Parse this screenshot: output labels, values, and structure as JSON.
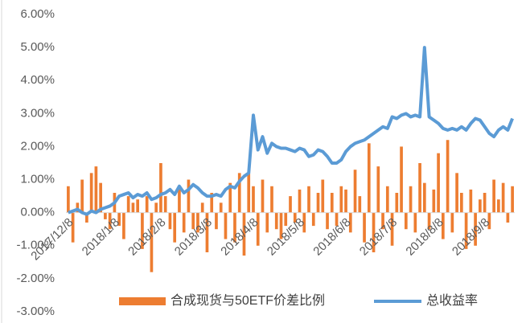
{
  "chart_data": {
    "type": "combo",
    "categories": [
      "2017/12/8",
      null,
      null,
      null,
      null,
      null,
      null,
      null,
      null,
      null,
      "2018/1/8",
      null,
      null,
      null,
      null,
      null,
      null,
      null,
      null,
      null,
      "2018/2/8",
      null,
      null,
      null,
      null,
      null,
      null,
      null,
      null,
      null,
      "2018/3/8",
      null,
      null,
      null,
      null,
      null,
      null,
      null,
      null,
      null,
      "2018/4/8",
      null,
      null,
      null,
      null,
      null,
      null,
      null,
      null,
      null,
      "2018/5/8",
      null,
      null,
      null,
      null,
      null,
      null,
      null,
      null,
      null,
      "2018/6/8",
      null,
      null,
      null,
      null,
      null,
      null,
      null,
      null,
      null,
      "2018/7/8",
      null,
      null,
      null,
      null,
      null,
      null,
      null,
      null,
      null,
      "2018/8/8",
      null,
      null,
      null,
      null,
      null,
      null,
      null,
      null,
      null,
      "2018/9/8",
      null,
      null,
      null,
      null,
      null,
      null
    ],
    "series": [
      {
        "name": "合成现货与50ETF价差比例",
        "type": "bar",
        "color": "#ed7d31",
        "values": [
          0.8,
          -0.9,
          0.3,
          1.0,
          -0.3,
          1.2,
          1.4,
          0.9,
          -0.2,
          -0.5,
          0.6,
          -0.4,
          -0.8,
          0.5,
          0.3,
          0.4,
          -1.1,
          0.5,
          -1.8,
          0.3,
          1.5,
          0.5,
          -0.5,
          -0.9,
          0.8,
          -0.6,
          1.0,
          -0.5,
          -0.6,
          0.3,
          -1.2,
          0.6,
          -0.5,
          0.3,
          -0.8,
          0.9,
          -0.9,
          1.2,
          -1.3,
          1.2,
          0.8,
          -1.0,
          1.0,
          -0.6,
          0.8,
          -0.5,
          -0.8,
          -0.4,
          0.5,
          -0.3,
          0.7,
          -0.6,
          0.8,
          -0.4,
          0.6,
          1.0,
          -0.5,
          0.6,
          -0.4,
          0.8,
          0.7,
          -0.6,
          1.3,
          0.5,
          -0.9,
          2.1,
          -1.2,
          1.4,
          -0.5,
          0.8,
          -1.0,
          0.6,
          2.0,
          -0.5,
          0.8,
          -0.6,
          1.5,
          0.9,
          -0.5,
          0.7,
          1.8,
          -0.8,
          2.2,
          -0.6,
          1.2,
          0.6,
          -1.1,
          0.7,
          -1.0,
          0.4,
          0.6,
          -0.5,
          1.0,
          0.4,
          0.9,
          -0.3,
          0.8
        ]
      },
      {
        "name": "总收益率",
        "type": "line",
        "color": "#5b9bd5",
        "values": [
          0,
          0.05,
          0.1,
          0,
          -0.05,
          0.05,
          0,
          0.1,
          0.15,
          0.2,
          0.3,
          0.5,
          0.55,
          0.6,
          0.45,
          0.55,
          0.5,
          0.6,
          0.4,
          0.45,
          0.55,
          0.6,
          0.7,
          0.55,
          0.8,
          0.6,
          0.7,
          0.85,
          0.75,
          0.6,
          0.5,
          0.5,
          0.55,
          0.5,
          0.7,
          0.8,
          0.75,
          0.95,
          1.1,
          1.2,
          2.95,
          1.9,
          2.3,
          1.8,
          2.1,
          2.0,
          1.95,
          1.95,
          1.9,
          1.85,
          1.95,
          1.9,
          1.7,
          1.75,
          1.9,
          1.85,
          1.7,
          1.5,
          1.5,
          1.6,
          1.85,
          2.0,
          2.1,
          2.15,
          2.2,
          2.3,
          2.4,
          2.5,
          2.6,
          2.55,
          2.9,
          2.85,
          2.95,
          3.0,
          2.9,
          2.95,
          2.9,
          5.0,
          2.9,
          2.8,
          2.7,
          2.55,
          2.5,
          2.55,
          2.5,
          2.6,
          2.5,
          2.7,
          2.85,
          2.8,
          2.6,
          2.4,
          2.3,
          2.5,
          2.6,
          2.5,
          2.85
        ]
      }
    ],
    "ylim": [
      -3,
      6
    ],
    "yticks": [
      {
        "value": -3,
        "label": "-3.00%"
      },
      {
        "value": -2,
        "label": "-2.00%"
      },
      {
        "value": -1,
        "label": "-1.00%"
      },
      {
        "value": 0,
        "label": "0.00%"
      },
      {
        "value": 1,
        "label": "1.00%"
      },
      {
        "value": 2,
        "label": "2.00%"
      },
      {
        "value": 3,
        "label": "3.00%"
      },
      {
        "value": 4,
        "label": "4.00%"
      },
      {
        "value": 5,
        "label": "5.00%"
      },
      {
        "value": 6,
        "label": "6.00%"
      }
    ],
    "grid": false,
    "legend": "bottom"
  }
}
